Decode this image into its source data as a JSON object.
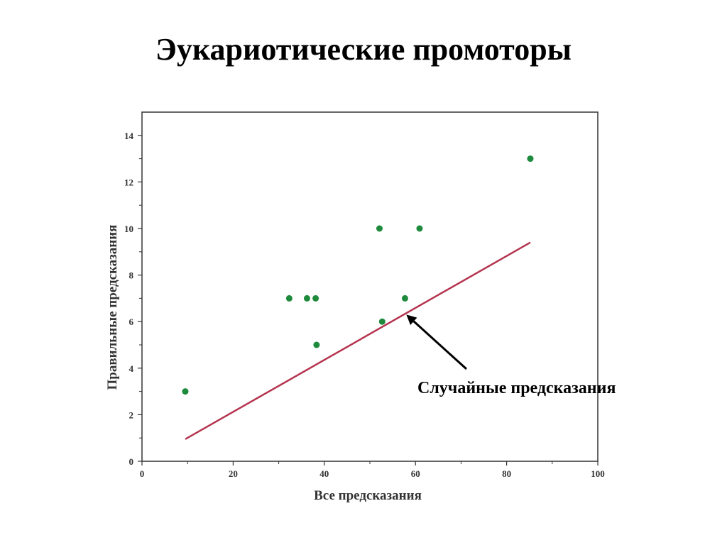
{
  "slide": {
    "title": "Эукариотические промоторы"
  },
  "chart_data": {
    "type": "scatter",
    "xlabel": "Все предсказания",
    "ylabel": "Правильные предсказания",
    "xlim": [
      0,
      100
    ],
    "ylim": [
      0,
      15
    ],
    "xticks": [
      0,
      20,
      40,
      60,
      80,
      100
    ],
    "yticks": [
      0,
      2,
      4,
      6,
      8,
      10,
      12,
      14
    ],
    "grid": false,
    "series": [
      {
        "type": "scatter",
        "color": "#1e8a3c",
        "points": [
          {
            "x": 9.5,
            "y": 3.0
          },
          {
            "x": 32.3,
            "y": 7.0
          },
          {
            "x": 36.2,
            "y": 7.0
          },
          {
            "x": 38.1,
            "y": 7.0
          },
          {
            "x": 38.3,
            "y": 5.0
          },
          {
            "x": 52.1,
            "y": 10.0
          },
          {
            "x": 52.7,
            "y": 6.0
          },
          {
            "x": 57.7,
            "y": 7.0
          },
          {
            "x": 60.9,
            "y": 10.0
          },
          {
            "x": 85.2,
            "y": 13.0
          }
        ]
      },
      {
        "type": "line",
        "color": "#b5344f",
        "points": [
          {
            "x": 9.5,
            "y": 0.95
          },
          {
            "x": 85.2,
            "y": 9.4
          }
        ]
      }
    ],
    "annotations": [
      {
        "text": "Случайные предсказания",
        "arrow_to": {
          "x": 58.0,
          "y": 6.3
        }
      }
    ]
  }
}
